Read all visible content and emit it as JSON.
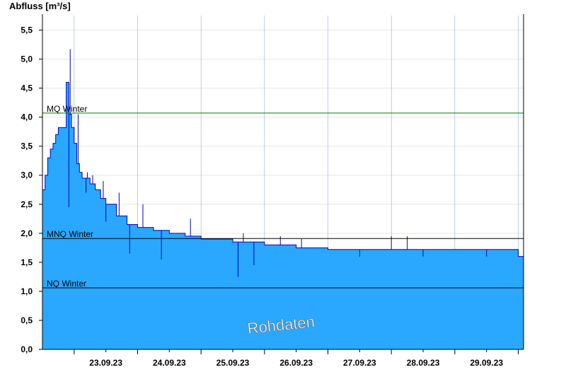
{
  "chart_data": {
    "type": "area",
    "ylabel": "Abfluss [m³/s]",
    "ylim": [
      0,
      5.75
    ],
    "yticks": [
      "0,0",
      "0,5",
      "1,0",
      "1,5",
      "2,0",
      "2,5",
      "3,0",
      "3,5",
      "4,0",
      "4,5",
      "5,0",
      "5,5"
    ],
    "ytick_values": [
      0,
      0.5,
      1.0,
      1.5,
      2.0,
      2.5,
      3.0,
      3.5,
      4.0,
      4.5,
      5.0,
      5.5
    ],
    "xlim": [
      "22.09.23 12:00",
      "30.09.23 02:00"
    ],
    "xticks": [
      "23.09.23",
      "24.09.23",
      "25.09.23",
      "26.09.23",
      "27.09.23",
      "28.09.23",
      "29.09.23"
    ],
    "day_boundaries": [
      "23.09.23 00:00",
      "24.09.23 00:00",
      "25.09.23 00:00",
      "26.09.23 00:00",
      "27.09.23 00:00",
      "28.09.23 00:00",
      "29.09.23 00:00",
      "30.09.23 00:00"
    ],
    "grid": true,
    "reference_lines": [
      {
        "name": "MQ Winter",
        "value": 4.07,
        "color": "#007700"
      },
      {
        "name": "MNQ Winter",
        "value": 1.91,
        "color": "#000000"
      },
      {
        "name": "NQ Winter",
        "value": 1.06,
        "color": "#000000"
      }
    ],
    "annotation": "Rohdaten",
    "series": [
      {
        "fill_color": "#2aa8ff",
        "line_color": "#0000cc",
        "time": [
          "22.09.23 12:00",
          "22.09.23 13:00",
          "22.09.23 14:00",
          "22.09.23 15:00",
          "22.09.23 16:00",
          "22.09.23 17:00",
          "22.09.23 18:00",
          "22.09.23 19:00",
          "22.09.23 20:00",
          "22.09.23 21:00",
          "22.09.23 22:00",
          "22.09.23 23:00",
          "23.09.23 00:00",
          "23.09.23 01:00",
          "23.09.23 02:00",
          "23.09.23 03:00",
          "23.09.23 04:00",
          "23.09.23 06:00",
          "23.09.23 08:00",
          "23.09.23 10:00",
          "23.09.23 12:00",
          "23.09.23 16:00",
          "23.09.23 20:00",
          "24.09.23 00:00",
          "24.09.23 06:00",
          "24.09.23 12:00",
          "24.09.23 18:00",
          "25.09.23 00:00",
          "25.09.23 12:00",
          "26.09.23 00:00",
          "26.09.23 12:00",
          "27.09.23 00:00",
          "28.09.23 00:00",
          "29.09.23 00:00",
          "29.09.23 12:00",
          "29.09.23 22:00",
          "30.09.23 00:00",
          "30.09.23 02:00"
        ],
        "values": [
          2.75,
          3.0,
          3.3,
          3.45,
          3.55,
          3.7,
          3.82,
          3.82,
          3.82,
          4.6,
          4.05,
          3.82,
          3.55,
          3.2,
          3.05,
          2.95,
          2.95,
          2.85,
          2.75,
          2.6,
          2.5,
          2.3,
          2.15,
          2.1,
          2.05,
          2.0,
          1.95,
          1.9,
          1.85,
          1.8,
          1.75,
          1.72,
          1.72,
          1.72,
          1.72,
          1.72,
          1.6,
          1.48
        ],
        "spikes_high": [
          [
            "22.09.23 22:30",
            5.17
          ],
          [
            "23.09.23 01:30",
            4.05
          ],
          [
            "23.09.23 05:00",
            3.05
          ],
          [
            "23.09.23 07:00",
            3.0
          ],
          [
            "23.09.23 11:00",
            2.9
          ],
          [
            "23.09.23 17:00",
            2.7
          ],
          [
            "24.09.23 02:00",
            2.5
          ],
          [
            "24.09.23 20:00",
            2.25
          ],
          [
            "25.09.23 16:00",
            2.0
          ],
          [
            "26.09.23 06:00",
            1.95
          ],
          [
            "26.09.23 14:00",
            1.9
          ],
          [
            "28.09.23 06:00",
            1.95
          ],
          [
            "28.09.23 00:00",
            1.95
          ]
        ],
        "spikes_low": [
          [
            "22.09.23 22:00",
            2.45
          ],
          [
            "23.09.23 04:30",
            2.7
          ],
          [
            "23.09.23 12:00",
            2.2
          ],
          [
            "23.09.23 21:00",
            1.65
          ],
          [
            "24.09.23 09:00",
            1.55
          ],
          [
            "25.09.23 14:00",
            1.25
          ],
          [
            "25.09.23 20:00",
            1.45
          ],
          [
            "27.09.23 12:00",
            1.6
          ],
          [
            "28.09.23 12:00",
            1.6
          ],
          [
            "29.09.23 12:00",
            1.6
          ]
        ]
      }
    ]
  }
}
